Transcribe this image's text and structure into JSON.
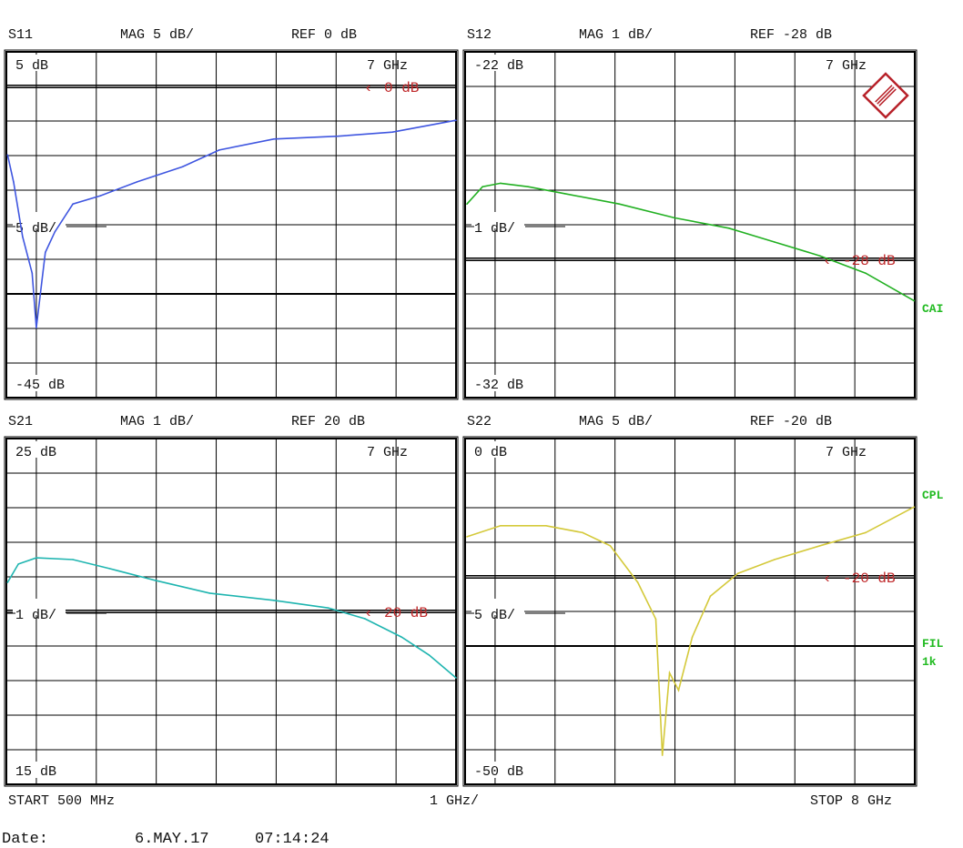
{
  "chart_data": [
    {
      "type": "line",
      "param": "S11",
      "mag": "MAG 5 dB/",
      "ref": "REF 0 dB",
      "top_label": "5 dB",
      "bottom_label": "-45 dB",
      "scale_label": "5 dB/",
      "marker_freq": "7 GHz",
      "ref_marker": "0 dB",
      "ylim": [
        -45,
        5
      ],
      "ref_value": 0,
      "extra_line": -30,
      "xlim": [
        0.5,
        8
      ],
      "color": "#3f56e0",
      "series": [
        {
          "x": [
            0.52,
            0.62,
            0.77,
            0.93,
            1.0,
            1.15,
            1.31,
            1.61,
            2.07,
            2.68,
            3.44,
            4.05,
            4.96,
            6.03,
            6.94,
            8.0
          ],
          "y": [
            -9.9,
            -13.8,
            -21.7,
            -27,
            -34.9,
            -24,
            -21,
            -17,
            -15.8,
            -13.8,
            -11.6,
            -9.2,
            -7.6,
            -7.2,
            -6.6,
            -4.9
          ]
        }
      ],
      "side_labels": []
    },
    {
      "type": "line",
      "param": "S12",
      "mag": "MAG 1 dB/",
      "ref": "REF -28 dB",
      "top_label": "-22 dB",
      "bottom_label": "-32 dB",
      "scale_label": "1 dB/",
      "marker_freq": "7 GHz",
      "ref_marker": "-28 dB",
      "ylim": [
        -32,
        -22
      ],
      "ref_value": -28,
      "xlim": [
        0.5,
        8
      ],
      "color": "#22b022",
      "series": [
        {
          "x": [
            0.53,
            0.79,
            1.09,
            1.55,
            2.16,
            3.07,
            3.99,
            4.9,
            5.66,
            6.42,
            7.18,
            7.99
          ],
          "y": [
            -26.4,
            -25.9,
            -25.8,
            -25.9,
            -26.1,
            -26.4,
            -26.8,
            -27.1,
            -27.5,
            -27.9,
            -28.4,
            -29.2
          ]
        }
      ],
      "side_labels": [
        "CAI"
      ]
    },
    {
      "type": "line",
      "param": "S21",
      "mag": "MAG 1 dB/",
      "ref": "REF 20 dB",
      "top_label": "25 dB",
      "bottom_label": "15 dB",
      "scale_label": "1 dB/",
      "marker_freq": "7 GHz",
      "ref_marker": "20 dB",
      "ylim": [
        15,
        25
      ],
      "ref_value": 20,
      "xlim": [
        0.5,
        8
      ],
      "color": "#1fb5b0",
      "series": [
        {
          "x": [
            0.52,
            0.7,
            1.0,
            1.61,
            2.22,
            2.98,
            3.89,
            4.96,
            5.87,
            6.48,
            7.09,
            7.55,
            8.0
          ],
          "y": [
            20.84,
            21.37,
            21.55,
            21.5,
            21.24,
            20.9,
            20.53,
            20.32,
            20.1,
            19.79,
            19.26,
            18.74,
            18.08
          ]
        }
      ],
      "side_labels": []
    },
    {
      "type": "line",
      "param": "S22",
      "mag": "MAG 5 dB/",
      "ref": "REF -20 dB",
      "top_label": "0 dB",
      "bottom_label": "-50 dB",
      "scale_label": "5 dB/",
      "marker_freq": "7 GHz",
      "ref_marker": "-20 dB",
      "ylim": [
        -50,
        0
      ],
      "ref_value": -20,
      "extra_line": -30,
      "xlim": [
        0.5,
        8
      ],
      "color": "#d4c93a",
      "series": [
        {
          "x": [
            0.53,
            1.09,
            1.85,
            2.46,
            2.92,
            3.38,
            3.68,
            3.79,
            3.91,
            4.06,
            4.29,
            4.59,
            5.05,
            5.66,
            6.42,
            7.18,
            7.99
          ],
          "y": [
            -14.2,
            -12.6,
            -12.6,
            -13.6,
            -15.5,
            -20.8,
            -26.1,
            -45.8,
            -33.9,
            -36.4,
            -28.7,
            -22.8,
            -19.5,
            -17.5,
            -15.5,
            -13.6,
            -9.9
          ]
        }
      ],
      "side_labels": [
        "CPL",
        "FIL",
        "1k"
      ]
    }
  ],
  "footer": {
    "start": "START  500 MHz",
    "span": "1 GHz/",
    "stop": "STOP 8 GHz",
    "date_label": "Date:",
    "date": "6.MAY.17",
    "time": "07:14:24"
  },
  "logo": "R&S"
}
